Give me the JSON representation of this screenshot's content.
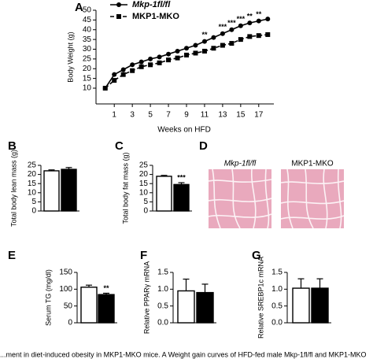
{
  "chart_data": [
    {
      "type": "line",
      "panel": "A",
      "xlabel": "Weeks on HFD",
      "ylabel": "Body Weight (g)",
      "x": [
        0,
        1,
        2,
        3,
        4,
        5,
        6,
        7,
        8,
        9,
        10,
        11,
        12,
        13,
        14,
        15,
        16,
        17,
        18
      ],
      "xlim": [
        -0.5,
        18.5
      ],
      "xticks": [
        1,
        3,
        5,
        7,
        9,
        11,
        13,
        15,
        17
      ],
      "ylim": [
        10,
        50
      ],
      "yticks": [
        10,
        15,
        20,
        25,
        30,
        35,
        40,
        45,
        50
      ],
      "legend": "upper left",
      "series": [
        {
          "name": "Mkp-1fl/fl",
          "color": "#000000",
          "marker": "circle",
          "linestyle": "solid",
          "values": [
            10,
            17,
            19.5,
            22,
            23.5,
            25,
            26,
            27.5,
            29,
            30.5,
            32,
            34,
            36,
            38,
            40,
            42,
            43.5,
            44.5,
            45.5
          ]
        },
        {
          "name": "MKP1-MKO",
          "color": "#000000",
          "marker": "square",
          "linestyle": "dashed",
          "values": [
            10,
            14,
            17,
            19,
            21,
            22,
            23,
            24.5,
            25.5,
            27,
            28,
            29,
            30.5,
            32,
            33,
            35,
            36.5,
            37,
            37.5
          ]
        }
      ],
      "annotations": [
        {
          "x": 11,
          "text": "**"
        },
        {
          "x": 13,
          "text": "***"
        },
        {
          "x": 14,
          "text": "***"
        },
        {
          "x": 15,
          "text": "***"
        },
        {
          "x": 16,
          "text": "**"
        },
        {
          "x": 17,
          "text": "**"
        }
      ]
    },
    {
      "type": "bar",
      "panel": "B",
      "ylabel": "Total body lean mass (g)",
      "categories": [
        null,
        null
      ],
      "values": [
        22,
        22.8
      ],
      "errors": [
        0.5,
        1
      ],
      "colors": [
        "#ffffff",
        "#000000"
      ],
      "ylim": [
        0,
        25
      ],
      "yticks": [
        0,
        5,
        10,
        15,
        20,
        25
      ],
      "annotations": []
    },
    {
      "type": "bar",
      "panel": "C",
      "ylabel": "Total body fat mass (g)",
      "categories": [
        null,
        null
      ],
      "values": [
        19,
        14.5
      ],
      "errors": [
        0.5,
        1
      ],
      "colors": [
        "#ffffff",
        "#000000"
      ],
      "ylim": [
        0,
        25
      ],
      "yticks": [
        0,
        5,
        10,
        15,
        20,
        25
      ],
      "annotations": [
        {
          "index": 1,
          "text": "***"
        }
      ]
    },
    {
      "type": "bar",
      "panel": "E",
      "ylabel": "Serum TG (mg/dl)",
      "categories": [
        null,
        null
      ],
      "values": [
        106,
        84
      ],
      "errors": [
        6,
        4
      ],
      "colors": [
        "#ffffff",
        "#000000"
      ],
      "ylim": [
        0,
        150
      ],
      "yticks": [
        0,
        50,
        100,
        150
      ],
      "annotations": [
        {
          "index": 1,
          "text": "**"
        }
      ]
    },
    {
      "type": "bar",
      "panel": "F",
      "ylabel": "Relative PPARγ mRNA",
      "categories": [
        null,
        null
      ],
      "values": [
        0.95,
        0.9
      ],
      "errors": [
        0.35,
        0.25
      ],
      "colors": [
        "#ffffff",
        "#000000"
      ],
      "ylim": [
        0,
        1.5
      ],
      "yticks": [
        {
          "value": 0,
          "label": "0.0"
        },
        {
          "value": 0.5,
          "label": "0.5"
        },
        {
          "value": 1,
          "label": "1.0"
        },
        {
          "value": 1.5,
          "label": "1.5"
        }
      ],
      "annotations": []
    },
    {
      "type": "bar",
      "panel": "G",
      "ylabel": "Relative SREBP1c mRNA",
      "categories": [
        null,
        null
      ],
      "values": [
        1.03,
        1.03
      ],
      "errors": [
        0.28,
        0.28
      ],
      "colors": [
        "#ffffff",
        "#000000"
      ],
      "ylim": [
        0,
        1.5
      ],
      "yticks": [
        {
          "value": 0,
          "label": "0.0"
        },
        {
          "value": 0.5,
          "label": "0.5"
        },
        {
          "value": 1,
          "label": "1.0"
        },
        {
          "value": 1.5,
          "label": "1.5"
        }
      ],
      "annotations": []
    }
  ],
  "panel_d": {
    "panel": "D",
    "labels": [
      "Mkp-1fl/fl",
      "MKP1-MKO"
    ]
  },
  "caption": "...ment in diet-induced obesity in MKP1-MKO mice. A Weight gain curves of HFD-fed male Mkp-1fl/fl and MKP1-MKO"
}
